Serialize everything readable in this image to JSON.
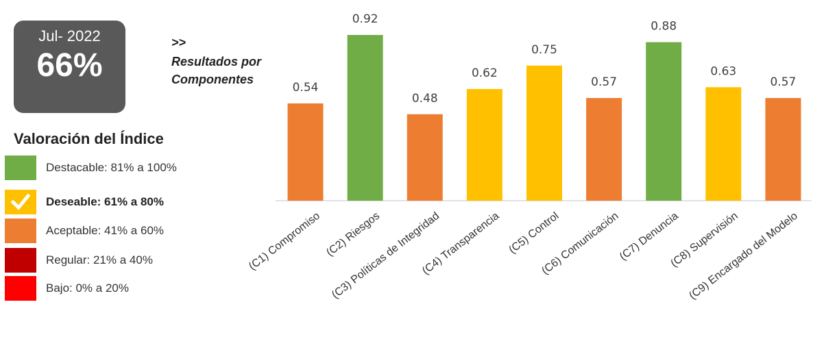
{
  "header": {
    "period": "Jul- 2022",
    "overall_score": "66%",
    "arrow": ">>",
    "subtitle_line1": "Resultados por",
    "subtitle_line2": "Componentes"
  },
  "legend": {
    "title": "Valoración del Índice",
    "items": [
      {
        "label": "Destacable: 81% a 100%",
        "color": "#70ad47",
        "selected": false
      },
      {
        "label": "Deseable: 61% a 80%",
        "color": "#ffc000",
        "selected": true
      },
      {
        "label": "Aceptable: 41% a 60%",
        "color": "#ed7d31",
        "selected": false
      },
      {
        "label": "Regular: 21% a 40%",
        "color": "#c00000",
        "selected": false
      },
      {
        "label": "Bajo: 0% a 20%",
        "color": "#ff0000",
        "selected": false
      }
    ]
  },
  "chart_data": {
    "type": "bar",
    "categories": [
      "(C1) Compromiso",
      "(C2) Riesgos",
      "(C3) Políticas de Integridad",
      "(C4) Transparencia",
      "(C5) Control",
      "(C6) Comunicación",
      "(C7) Denuncia",
      "(C8) Supervisión",
      "(C9) Encargado del Modelo"
    ],
    "values": [
      0.54,
      0.92,
      0.48,
      0.62,
      0.75,
      0.57,
      0.88,
      0.63,
      0.57
    ],
    "value_labels": [
      "0.54",
      "0.92",
      "0.48",
      "0.62",
      "0.75",
      "0.57",
      "0.88",
      "0.63",
      "0.57"
    ],
    "bar_colors": [
      "#ed7d31",
      "#70ad47",
      "#ed7d31",
      "#ffc000",
      "#ffc000",
      "#ed7d31",
      "#70ad47",
      "#ffc000",
      "#ed7d31"
    ],
    "ylim": [
      0,
      1
    ],
    "grid": false,
    "label_color": "#404040"
  }
}
